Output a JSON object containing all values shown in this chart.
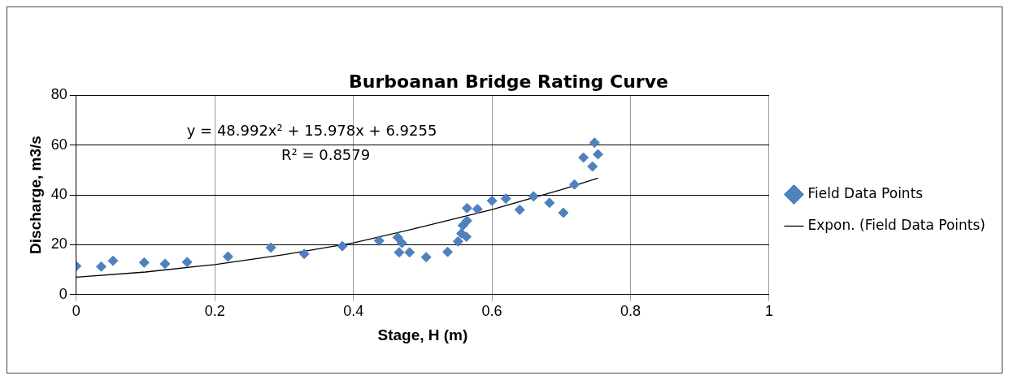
{
  "chart_data": {
    "type": "scatter",
    "title": "Burboanan Bridge Rating Curve",
    "xlabel": "Stage, H (m)",
    "ylabel": "Discharge, m3/s",
    "xlim": [
      0,
      1
    ],
    "xticks": [
      0,
      0.2,
      0.4,
      0.6,
      0.8,
      1
    ],
    "ylim": [
      0,
      80
    ],
    "yticks": [
      0,
      20,
      40,
      60,
      80
    ],
    "grid": true,
    "legend": "right",
    "marker": "diamond",
    "annotations": [
      "y = 48.992x² + 15.978x + 6.9255",
      "R² = 0.8579"
    ],
    "series": [
      {
        "name": "Field Data Points",
        "type": "scatter",
        "color": "#4f81bd",
        "x": [
          0,
          0.036,
          0.053,
          0.098,
          0.128,
          0.16,
          0.219,
          0.281,
          0.329,
          0.384,
          0.437,
          0.464,
          0.47,
          0.466,
          0.481,
          0.505,
          0.536,
          0.551,
          0.556,
          0.563,
          0.558,
          0.564,
          0.564,
          0.579,
          0.6,
          0.62,
          0.64,
          0.66,
          0.683,
          0.703,
          0.719,
          0.732,
          0.745,
          0.748,
          0.753
        ],
        "values": [
          11.4,
          11.2,
          13.5,
          12.8,
          12.3,
          13,
          15.2,
          18.8,
          16.3,
          19.4,
          21.6,
          22.9,
          20.7,
          16.9,
          16.9,
          15,
          17.1,
          21.3,
          24.5,
          23.2,
          27.7,
          29.6,
          34.7,
          34.3,
          37.6,
          38.5,
          34,
          39.4,
          36.8,
          32.8,
          44.2,
          55,
          51.4,
          61,
          56.3
        ]
      },
      {
        "name": "Expon. (Field Data Points)",
        "type": "line",
        "color": "#000000",
        "line_style": "solid",
        "marker": "none",
        "x": [
          0,
          0.1,
          0.2,
          0.3,
          0.4,
          0.5,
          0.6,
          0.7,
          0.753
        ],
        "values": [
          6.9,
          9,
          12,
          16,
          20.7,
          27.2,
          34.1,
          42.1,
          46.7
        ]
      }
    ]
  }
}
